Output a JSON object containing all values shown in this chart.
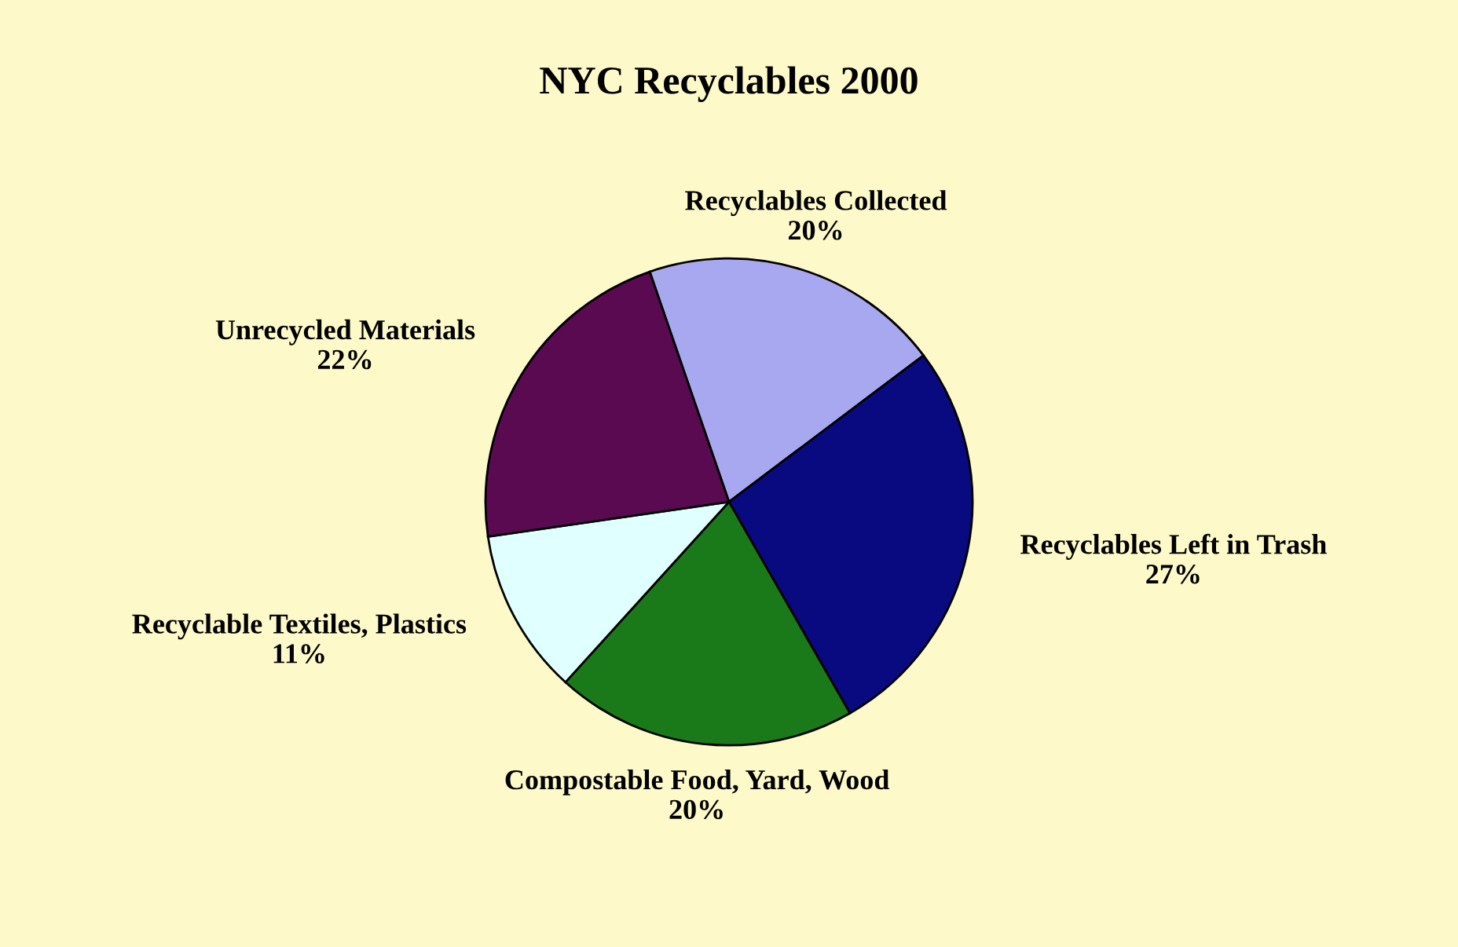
{
  "chart_data": {
    "type": "pie",
    "title": "NYC Recyclables 2000",
    "categories": [
      "Recyclables Collected",
      "Recyclables Left in Trash",
      "Compostable Food, Yard, Wood",
      "Recyclable Textiles, Plastics",
      "Unrecycled Materials"
    ],
    "values": [
      20,
      27,
      20,
      11,
      22
    ],
    "colors": [
      "#a8a8f0",
      "#0a0a80",
      "#1a7a1a",
      "#e0ffff",
      "#5a0a50"
    ],
    "value_labels": [
      "20%",
      "27%",
      "20%",
      "11%",
      "22%"
    ],
    "legend": false
  }
}
